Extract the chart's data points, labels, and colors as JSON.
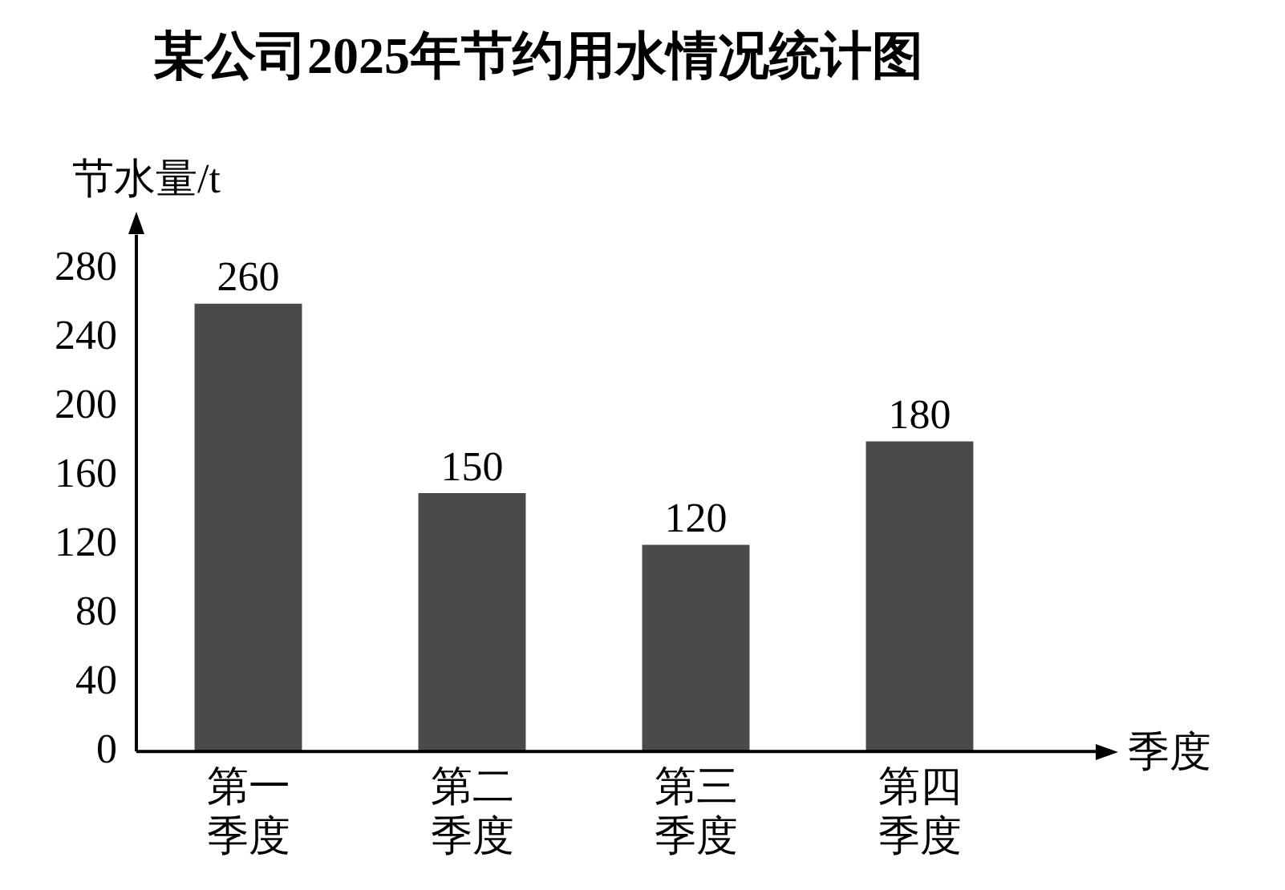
{
  "chart_data": {
    "type": "bar",
    "title": "某公司2025年节约用水情况统计图",
    "xlabel": "季度",
    "ylabel": "节水量/t",
    "categories": [
      "第一季度",
      "第二季度",
      "第三季度",
      "第四季度"
    ],
    "values": [
      260,
      150,
      120,
      180
    ],
    "color": "#4a4a4a",
    "ylim": [
      0,
      300
    ],
    "yticks": [
      0,
      40,
      80,
      120,
      160,
      200,
      240,
      280
    ],
    "grid": false,
    "legend": false,
    "data_labels": true
  }
}
